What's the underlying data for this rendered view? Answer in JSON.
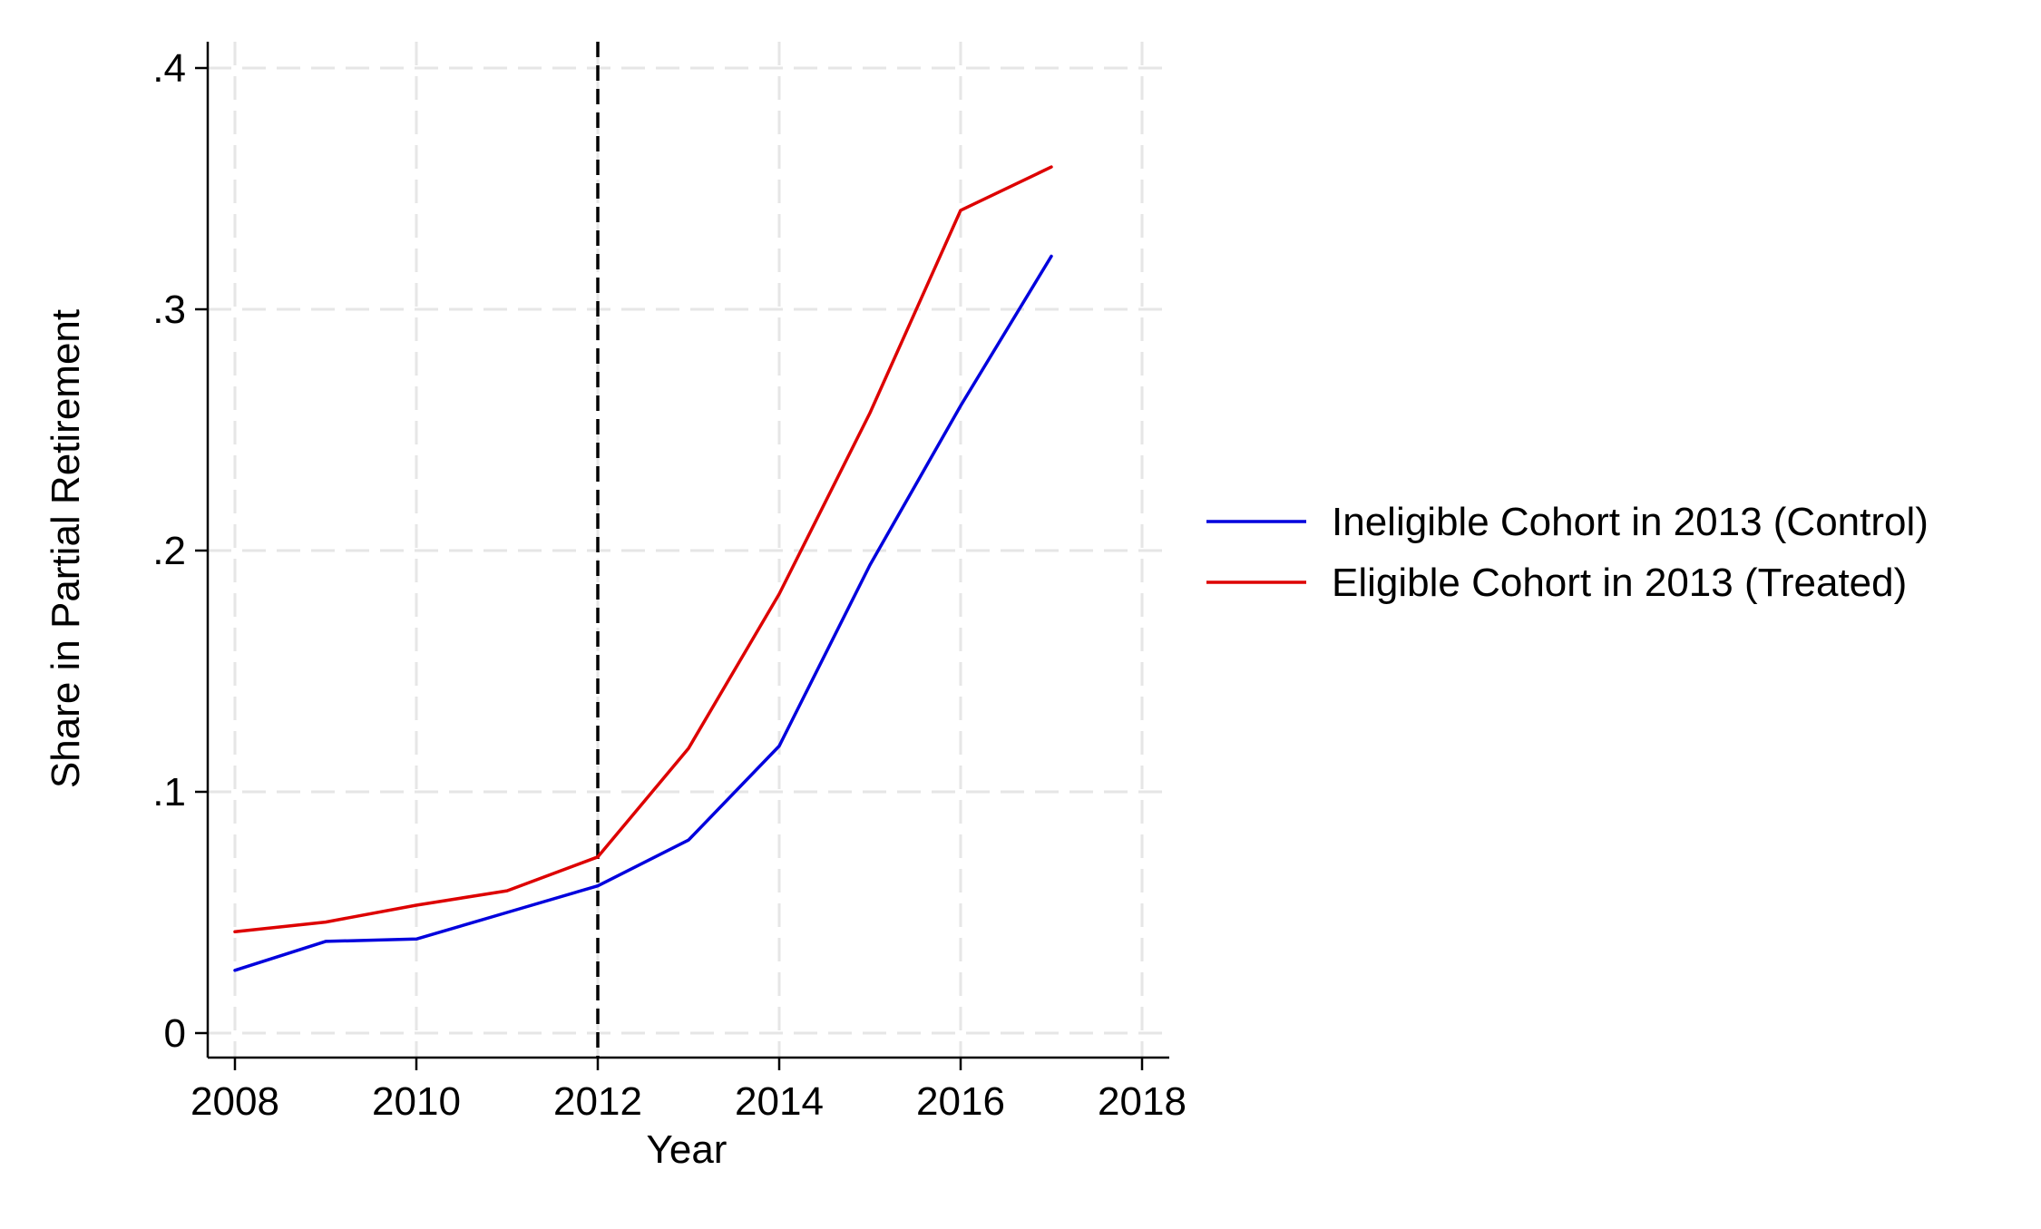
{
  "chart_data": {
    "type": "line",
    "xlabel": "Year",
    "ylabel": "Share in Partial Retirement",
    "xlim": [
      2008,
      2018
    ],
    "ylim": [
      0,
      0.4
    ],
    "x_ticks": [
      {
        "value": 2008,
        "label": "2008"
      },
      {
        "value": 2010,
        "label": "2010"
      },
      {
        "value": 2012,
        "label": "2012"
      },
      {
        "value": 2014,
        "label": "2014"
      },
      {
        "value": 2016,
        "label": "2016"
      },
      {
        "value": 2018,
        "label": "2018"
      }
    ],
    "y_ticks": [
      {
        "value": 0,
        "label": "0"
      },
      {
        "value": 0.1,
        "label": ".1"
      },
      {
        "value": 0.2,
        "label": ".2"
      },
      {
        "value": 0.3,
        "label": ".3"
      },
      {
        "value": 0.4,
        "label": ".4"
      }
    ],
    "grid": true,
    "reference_line": {
      "x": 2012,
      "style": "dashed",
      "color": "#000000"
    },
    "legend_position": "right",
    "x": [
      2008,
      2009,
      2010,
      2011,
      2012,
      2013,
      2014,
      2015,
      2016,
      2017
    ],
    "series": [
      {
        "name": "Ineligible Cohort in 2013 (Control)",
        "color": "#0000dd",
        "values": [
          0.026,
          0.038,
          0.039,
          0.05,
          0.061,
          0.08,
          0.119,
          0.194,
          0.26,
          0.322
        ]
      },
      {
        "name": "Eligible Cohort in 2013 (Treated)",
        "color": "#dd0000",
        "values": [
          0.042,
          0.046,
          0.053,
          0.059,
          0.073,
          0.118,
          0.182,
          0.257,
          0.341,
          0.359
        ]
      }
    ]
  }
}
